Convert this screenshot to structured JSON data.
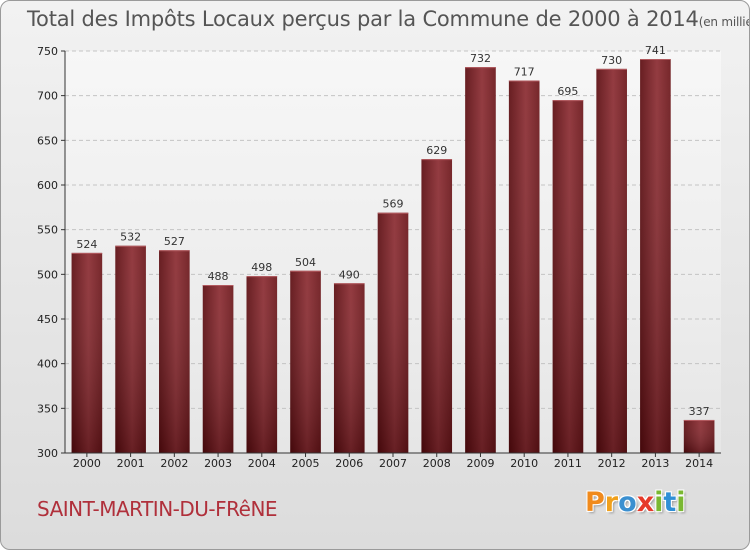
{
  "chart_data": {
    "type": "bar",
    "title": "Total des Impôts Locaux perçus par la Commune de 2000 à 2014",
    "unit": "(en milliers d'€)",
    "categories": [
      "2000",
      "2001",
      "2002",
      "2003",
      "2004",
      "2005",
      "2006",
      "2007",
      "2008",
      "2009",
      "2010",
      "2011",
      "2012",
      "2013",
      "2014"
    ],
    "values": [
      524,
      532,
      527,
      488,
      498,
      504,
      490,
      569,
      629,
      732,
      717,
      695,
      730,
      741,
      337
    ],
    "ylim": [
      300,
      750
    ],
    "yticks": [
      300,
      350,
      400,
      450,
      500,
      550,
      600,
      650,
      700,
      750
    ],
    "xlabel": "",
    "ylabel": "",
    "grid": true,
    "bar_color": "#7a1a1f"
  },
  "commune": "SAINT-MARTIN-DU-FRêNE",
  "brand": {
    "name": "Proxiti",
    "letters": [
      "P",
      "r",
      "o",
      "x",
      "i",
      "t",
      "i"
    ],
    "colors": [
      "#f08a1c",
      "#f0a01c",
      "#3a8fd0",
      "#e63a2a",
      "#7ab832",
      "#2f8fd6",
      "#7ab832"
    ]
  }
}
